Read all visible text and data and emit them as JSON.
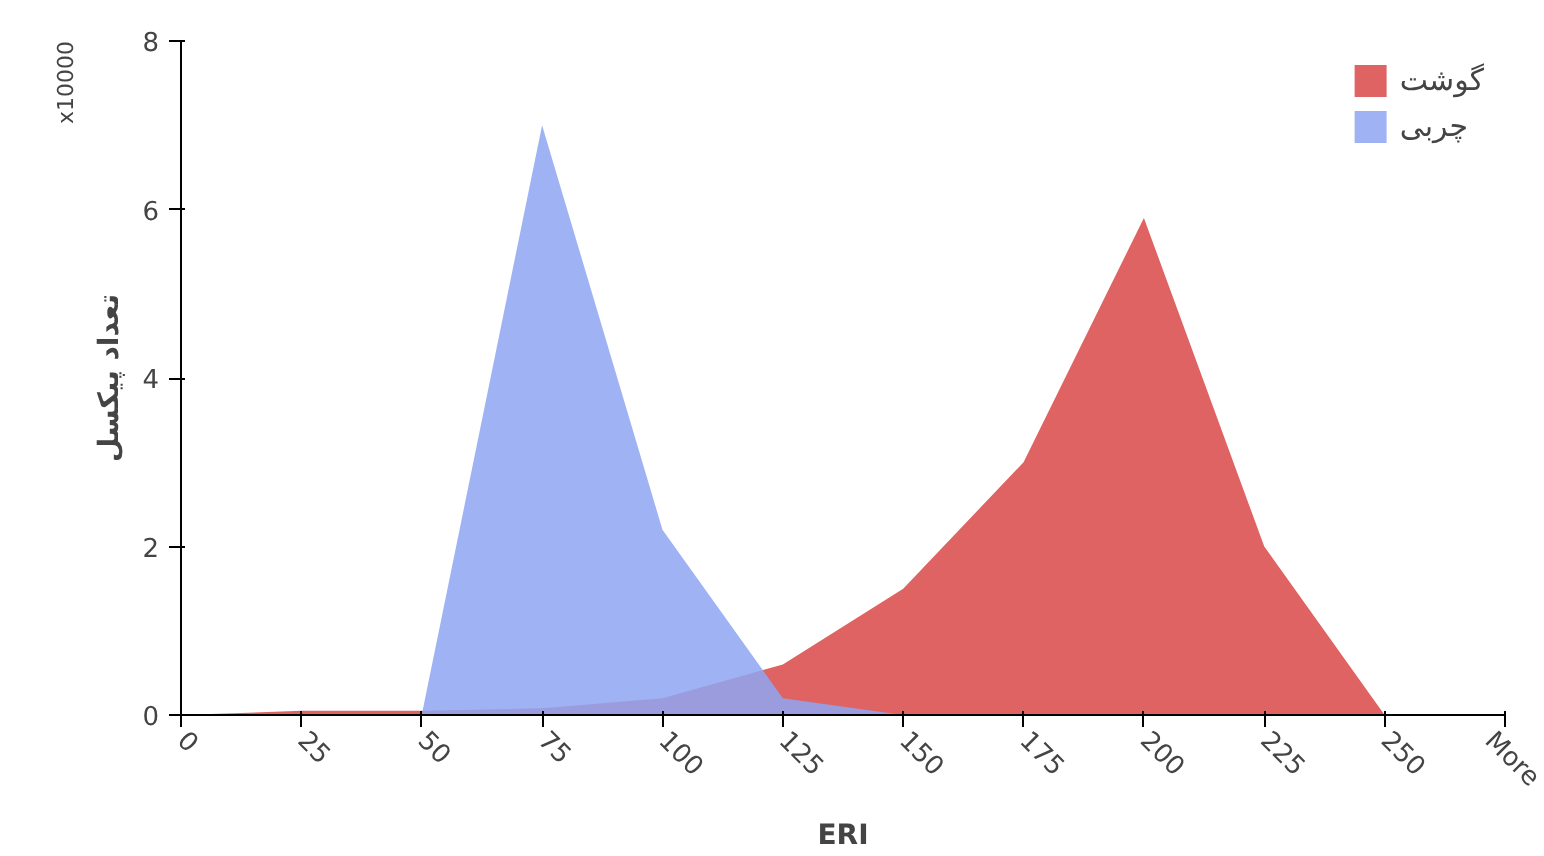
{
  "chart_data": {
    "type": "area",
    "xlabel": "ERI",
    "ylabel": "تعداد پیکسل",
    "categories": [
      "0",
      "25",
      "50",
      "75",
      "100",
      "125",
      "150",
      "175",
      "200",
      "225",
      "250",
      "More"
    ],
    "series": [
      {
        "name": "گوشت",
        "color": "#d94848",
        "values": [
          0,
          0.05,
          0.05,
          0.08,
          0.2,
          0.6,
          1.5,
          3,
          5.9,
          2,
          0,
          null
        ]
      },
      {
        "name": "چربی",
        "color": "#8ea6f2",
        "values": [
          0,
          0,
          0,
          7,
          2.2,
          0.2,
          0,
          0,
          0,
          0,
          0,
          null
        ]
      }
    ],
    "ylim": [
      0,
      8
    ],
    "yticks": [
      0,
      2,
      4,
      6,
      8
    ],
    "grid": false,
    "legend": "top right",
    "annotations": [
      "x10000"
    ]
  }
}
